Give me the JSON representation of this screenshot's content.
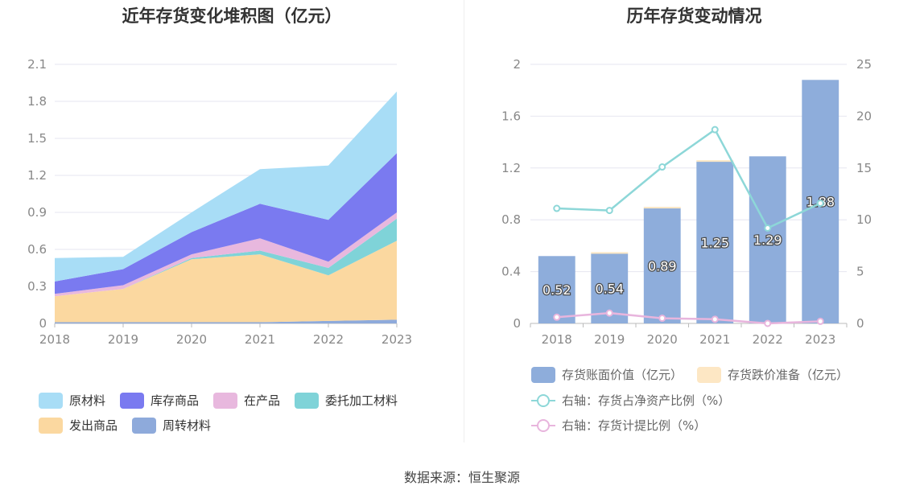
{
  "left_chart": {
    "title": "近年存货变化堆积图（亿元）",
    "legend": {
      "items": [
        {
          "label": "原材料",
          "color": "#a8ddf6"
        },
        {
          "label": "库存商品",
          "color": "#7a7af0"
        },
        {
          "label": "在产品",
          "color": "#e8b8de"
        },
        {
          "label": "委托加工材料",
          "color": "#7fd3d8"
        },
        {
          "label": "发出商品",
          "color": "#fbd8a0"
        },
        {
          "label": "周转材料",
          "color": "#8eaadb"
        }
      ]
    }
  },
  "right_chart": {
    "title": "历年存货变动情况",
    "legend": {
      "bar_items": [
        {
          "label": "存货账面价值（亿元）",
          "color": "#8eaddb"
        },
        {
          "label": "存货跌价准备（亿元）",
          "color": "#fde7c4"
        }
      ],
      "line_items": [
        {
          "label": "右轴：存货占净资产比例（%）",
          "color": "#8dd7d8"
        },
        {
          "label": "右轴：存货计提比例（%）",
          "color": "#e8b5dd"
        }
      ]
    }
  },
  "footer": {
    "source": "数据来源：恒生聚源"
  },
  "chart_data": [
    {
      "type": "area",
      "stacked": true,
      "title": "近年存货变化堆积图（亿元）",
      "x": [
        "2018",
        "2019",
        "2020",
        "2021",
        "2022",
        "2023"
      ],
      "y_ticks": [
        "0",
        "0.3",
        "0.6",
        "0.9",
        "1.2",
        "1.5",
        "1.8",
        "2.1"
      ],
      "ylim": [
        0,
        2.1
      ],
      "grid": true,
      "legend_position": "bottom",
      "series": [
        {
          "name": "周转材料",
          "color": "#8eaadb",
          "values": [
            0.01,
            0.01,
            0.01,
            0.01,
            0.02,
            0.03
          ]
        },
        {
          "name": "发出商品",
          "color": "#fbd8a0",
          "values": [
            0.21,
            0.27,
            0.51,
            0.55,
            0.37,
            0.64
          ]
        },
        {
          "name": "委托加工材料",
          "color": "#7fd3d8",
          "values": [
            0.0,
            0.0,
            0.01,
            0.03,
            0.06,
            0.18
          ]
        },
        {
          "name": "在产品",
          "color": "#e8b8de",
          "values": [
            0.02,
            0.03,
            0.03,
            0.1,
            0.05,
            0.05
          ]
        },
        {
          "name": "库存商品",
          "color": "#7a7af0",
          "values": [
            0.1,
            0.13,
            0.18,
            0.28,
            0.34,
            0.48
          ]
        },
        {
          "name": "原材料",
          "color": "#a8ddf6",
          "values": [
            0.19,
            0.1,
            0.16,
            0.28,
            0.44,
            0.5
          ]
        }
      ]
    },
    {
      "type": "bar",
      "title": "历年存货变动情况",
      "categories": [
        "2018",
        "2019",
        "2020",
        "2021",
        "2022",
        "2023"
      ],
      "y_ticks": [
        "0",
        "0.4",
        "0.8",
        "1.2",
        "1.6",
        "2"
      ],
      "ylim": [
        0,
        2
      ],
      "y2_ticks": [
        "0",
        "5",
        "10",
        "15",
        "20",
        "25"
      ],
      "y2lim": [
        0,
        25
      ],
      "grid": true,
      "legend_position": "bottom",
      "series": [
        {
          "name": "存货账面价值（亿元）",
          "type": "bar",
          "axis": "left",
          "color": "#8eaddb",
          "values": [
            0.52,
            0.54,
            0.89,
            1.25,
            1.29,
            1.88
          ],
          "data_labels": [
            "0.52",
            "0.54",
            "0.89",
            "1.25",
            "1.29",
            "1.88"
          ]
        },
        {
          "name": "存货跌价准备（亿元）",
          "type": "bar",
          "axis": "left",
          "color": "#fde7c4",
          "values": [
            0.0,
            0.01,
            0.01,
            0.01,
            0.0,
            0.0
          ]
        },
        {
          "name": "右轴：存货占净资产比例（%）",
          "type": "line",
          "axis": "right",
          "color": "#8dd7d8",
          "values": [
            11.1,
            10.9,
            15.1,
            18.7,
            9.2,
            11.6
          ]
        },
        {
          "name": "右轴：存货计提比例（%）",
          "type": "line",
          "axis": "right",
          "color": "#e8b5dd",
          "values": [
            0.6,
            1.0,
            0.5,
            0.4,
            0.0,
            0.2
          ]
        }
      ]
    }
  ]
}
